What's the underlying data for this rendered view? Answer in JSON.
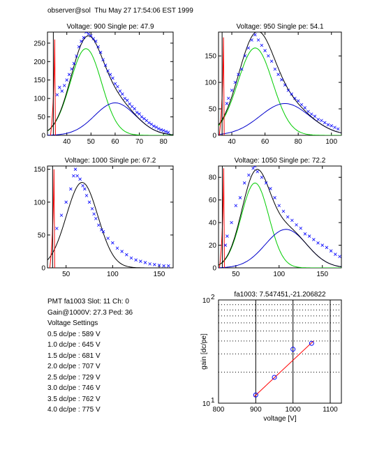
{
  "header": "observer@sol  Thu May 27 17:54:06 EST 1999",
  "colors": {
    "data": "#0000ff",
    "total": "#000000",
    "gauss": "#00cc00",
    "second": "#0000cc",
    "ped": "#ff0000",
    "fit": "#ff0000"
  },
  "info": {
    "pmt_line": "PMT fa1003 Slot: 11 Ch: 0",
    "gain_line": "Gain@1000V: 27.3 Ped: 36",
    "settings_title": "Voltage Settings",
    "settings": [
      "0.5 dc/pe : 589 V",
      "1.0 dc/pe : 645 V",
      "1.5 dc/pe : 681 V",
      "2.0 dc/pe : 707 V",
      "2.5 dc/pe : 729 V",
      "3.0 dc/pe : 746 V",
      "3.5 dc/pe : 762 V",
      "4.0 dc/pe : 775 V"
    ]
  },
  "chart_data": [
    {
      "type": "scatter",
      "title": "Voltage: 900 Single pe: 47.9",
      "xlim": [
        32,
        84
      ],
      "ylim": [
        0,
        280
      ],
      "xticks": [
        40,
        50,
        60,
        70,
        80
      ],
      "yticks": [
        0,
        50,
        100,
        150,
        200,
        250
      ],
      "ped": {
        "x": 35,
        "peak": 260
      },
      "g1": {
        "mu": 47.9,
        "sigma": 6.5,
        "amp": 235
      },
      "g2": {
        "mu": 60,
        "sigma": 8.5,
        "amp": 88
      },
      "points": [
        [
          36,
          110
        ],
        [
          37,
          130
        ],
        [
          38,
          120
        ],
        [
          39,
          135
        ],
        [
          40,
          150
        ],
        [
          41,
          165
        ],
        [
          42,
          180
        ],
        [
          43,
          195
        ],
        [
          44,
          215
        ],
        [
          45,
          240
        ],
        [
          46,
          255
        ],
        [
          47,
          265
        ],
        [
          48,
          280
        ],
        [
          49,
          275
        ],
        [
          50,
          270
        ],
        [
          51,
          262
        ],
        [
          52,
          255
        ],
        [
          53,
          240
        ],
        [
          54,
          225
        ],
        [
          55,
          205
        ],
        [
          56,
          190
        ],
        [
          57,
          175
        ],
        [
          58,
          165
        ],
        [
          59,
          155
        ],
        [
          60,
          140
        ],
        [
          61,
          132
        ],
        [
          62,
          120
        ],
        [
          63,
          112
        ],
        [
          64,
          100
        ],
        [
          65,
          95
        ],
        [
          66,
          85
        ],
        [
          67,
          78
        ],
        [
          68,
          72
        ],
        [
          69,
          62
        ],
        [
          70,
          58
        ],
        [
          71,
          50
        ],
        [
          72,
          45
        ],
        [
          73,
          40
        ],
        [
          74,
          34
        ],
        [
          75,
          30
        ],
        [
          76,
          25
        ],
        [
          77,
          22
        ],
        [
          78,
          18
        ],
        [
          79,
          15
        ],
        [
          80,
          13
        ],
        [
          81,
          10
        ],
        [
          82,
          8
        ]
      ]
    },
    {
      "type": "scatter",
      "title": "Voltage: 950 Single pe: 54.1",
      "xlim": [
        32,
        106
      ],
      "ylim": [
        0,
        195
      ],
      "xticks": [
        40,
        60,
        80,
        100
      ],
      "yticks": [
        0,
        50,
        100,
        150
      ],
      "ped": {
        "x": 35,
        "peak": 185
      },
      "g1": {
        "mu": 54.1,
        "sigma": 10.5,
        "amp": 165
      },
      "g2": {
        "mu": 72,
        "sigma": 15,
        "amp": 60
      },
      "points": [
        [
          37,
          60
        ],
        [
          38,
          70
        ],
        [
          40,
          85
        ],
        [
          42,
          100
        ],
        [
          44,
          115
        ],
        [
          46,
          125
        ],
        [
          48,
          150
        ],
        [
          50,
          165
        ],
        [
          52,
          180
        ],
        [
          54,
          190
        ],
        [
          56,
          180
        ],
        [
          58,
          170
        ],
        [
          60,
          160
        ],
        [
          62,
          150
        ],
        [
          64,
          140
        ],
        [
          66,
          125
        ],
        [
          68,
          115
        ],
        [
          70,
          105
        ],
        [
          72,
          95
        ],
        [
          74,
          85
        ],
        [
          76,
          78
        ],
        [
          78,
          70
        ],
        [
          80,
          65
        ],
        [
          82,
          58
        ],
        [
          84,
          52
        ],
        [
          86,
          45
        ],
        [
          88,
          40
        ],
        [
          90,
          36
        ],
        [
          92,
          30
        ],
        [
          94,
          28
        ],
        [
          96,
          24
        ],
        [
          98,
          20
        ],
        [
          100,
          18
        ],
        [
          102,
          15
        ],
        [
          104,
          12
        ]
      ]
    },
    {
      "type": "scatter",
      "title": "Voltage: 1000 Single pe: 67.2",
      "xlim": [
        30,
        165
      ],
      "ylim": [
        0,
        155
      ],
      "xticks": [
        50,
        100,
        150
      ],
      "yticks": [
        0,
        50,
        100,
        150
      ],
      "ped": {
        "x": 37,
        "peak": 150
      },
      "total": {
        "mu": 67.2,
        "sigma": 17,
        "amp": 130
      },
      "points": [
        [
          40,
          60
        ],
        [
          45,
          80
        ],
        [
          50,
          100
        ],
        [
          55,
          120
        ],
        [
          58,
          140
        ],
        [
          60,
          150
        ],
        [
          62,
          140
        ],
        [
          65,
          135
        ],
        [
          68,
          125
        ],
        [
          70,
          120
        ],
        [
          72,
          110
        ],
        [
          75,
          100
        ],
        [
          78,
          90
        ],
        [
          80,
          82
        ],
        [
          82,
          75
        ],
        [
          85,
          65
        ],
        [
          88,
          58
        ],
        [
          90,
          55
        ],
        [
          95,
          45
        ],
        [
          100,
          38
        ],
        [
          105,
          30
        ],
        [
          110,
          25
        ],
        [
          115,
          20
        ],
        [
          120,
          15
        ],
        [
          125,
          12
        ],
        [
          130,
          10
        ],
        [
          135,
          8
        ],
        [
          140,
          6
        ],
        [
          145,
          5
        ],
        [
          150,
          4
        ],
        [
          155,
          3
        ],
        [
          160,
          3
        ]
      ]
    },
    {
      "type": "scatter",
      "title": "Voltage: 1050 Single pe: 72.2",
      "xlim": [
        30,
        172
      ],
      "ylim": [
        0,
        90
      ],
      "xticks": [
        50,
        100,
        150
      ],
      "yticks": [
        0,
        20,
        40,
        60,
        80
      ],
      "ped": {
        "x": 36,
        "peak": 88
      },
      "g1": {
        "mu": 72.2,
        "sigma": 16,
        "amp": 75
      },
      "g2": {
        "mu": 108,
        "sigma": 24,
        "amp": 34
      },
      "points": [
        [
          38,
          20
        ],
        [
          40,
          28
        ],
        [
          45,
          40
        ],
        [
          50,
          55
        ],
        [
          55,
          62
        ],
        [
          60,
          75
        ],
        [
          65,
          82
        ],
        [
          70,
          88
        ],
        [
          72,
          90
        ],
        [
          75,
          85
        ],
        [
          80,
          80
        ],
        [
          85,
          75
        ],
        [
          90,
          70
        ],
        [
          95,
          62
        ],
        [
          100,
          55
        ],
        [
          105,
          50
        ],
        [
          110,
          45
        ],
        [
          115,
          42
        ],
        [
          120,
          38
        ],
        [
          125,
          35
        ],
        [
          130,
          30
        ],
        [
          135,
          28
        ],
        [
          140,
          25
        ],
        [
          145,
          22
        ],
        [
          150,
          20
        ],
        [
          155,
          18
        ],
        [
          160,
          15
        ],
        [
          165,
          12
        ],
        [
          170,
          10
        ]
      ]
    },
    {
      "type": "scatter",
      "title": "fa1003: 7.547451,-21.206822",
      "xlabel": "voltage [V]",
      "ylabel": "gain [dc/pe]",
      "xlim": [
        800,
        1130
      ],
      "ylim": [
        10,
        100
      ],
      "yscale": "log",
      "xticks": [
        800,
        900,
        1000,
        1100
      ],
      "ytick_labels": [
        "10^1",
        "10^2"
      ],
      "points": [
        [
          900,
          12
        ],
        [
          950,
          17.8
        ],
        [
          1000,
          33.3
        ],
        [
          1050,
          38
        ]
      ],
      "fit_line": [
        [
          895,
          11.5
        ],
        [
          1055,
          40
        ]
      ]
    }
  ]
}
